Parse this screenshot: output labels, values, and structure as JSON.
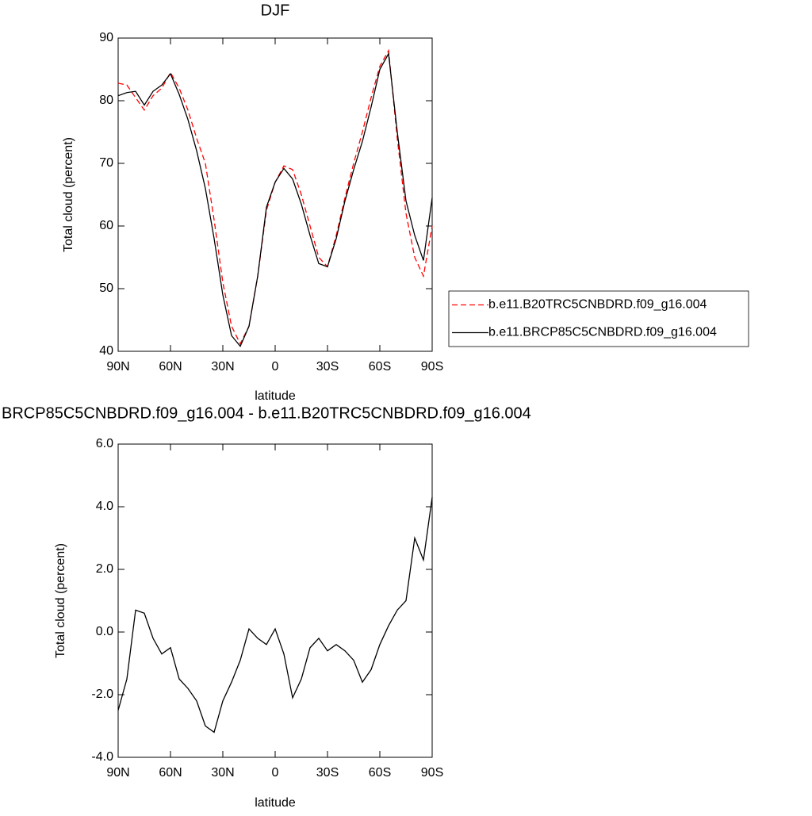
{
  "chart_data": [
    {
      "type": "line",
      "title": "DJF",
      "x_label": "latitude",
      "y_label": "Total cloud (percent)",
      "x": [
        90,
        85,
        80,
        75,
        70,
        65,
        60,
        55,
        50,
        45,
        40,
        35,
        30,
        25,
        20,
        15,
        10,
        5,
        0,
        -5,
        -10,
        -15,
        -20,
        -25,
        -30,
        -35,
        -40,
        -45,
        -50,
        -55,
        -60,
        -65,
        -70,
        -75,
        -80,
        -85,
        -90
      ],
      "xlim": [
        90,
        -90
      ],
      "xticks": [
        {
          "value": 90,
          "label": "90N"
        },
        {
          "value": 60,
          "label": "60N"
        },
        {
          "value": 30,
          "label": "30N"
        },
        0,
        {
          "value": -30,
          "label": "30S"
        },
        {
          "value": -60,
          "label": "60S"
        },
        {
          "value": -90,
          "label": "90S"
        }
      ],
      "ylim": [
        40,
        90
      ],
      "yticks": [
        40,
        50,
        60,
        70,
        80,
        90
      ],
      "legend": "right",
      "series": [
        {
          "name": "b.e11.B20TRC5CNBDRD.f09_g16.004",
          "color": "#ff0000",
          "style": "dashed",
          "values": [
            82.8,
            82.5,
            80.5,
            78.5,
            80.8,
            82,
            84.5,
            82,
            78.5,
            74,
            70,
            61,
            51,
            44,
            41.2,
            44,
            52,
            62.5,
            67,
            69.6,
            69,
            65,
            60,
            55,
            53.5,
            58.5,
            64.5,
            70,
            75,
            80.5,
            85.5,
            88,
            74,
            62,
            55,
            52,
            60
          ]
        },
        {
          "name": "b.e11.BRCP85C5CNBDRD.f09_g16.004",
          "color": "#000000",
          "style": "solid",
          "values": [
            80.8,
            81.3,
            81.5,
            79.3,
            81.5,
            82.5,
            84.3,
            81,
            77,
            72,
            66,
            58,
            49,
            42.5,
            40.8,
            44,
            52,
            63,
            67,
            69.2,
            67.5,
            63.5,
            58.5,
            54,
            53.5,
            58,
            64,
            69,
            73.5,
            79,
            85,
            87.5,
            75,
            64,
            58.5,
            54.5,
            64.5
          ]
        }
      ]
    },
    {
      "type": "line",
      "title": "BRCP85C5CNBDRD.f09_g16.004 - b.e11.B20TRC5CNBDRD.f09_g16.004",
      "x_label": "latitude",
      "y_label": "Total cloud (percent)",
      "x": [
        90,
        85,
        80,
        75,
        70,
        65,
        60,
        55,
        50,
        45,
        40,
        35,
        30,
        25,
        20,
        15,
        10,
        5,
        0,
        -5,
        -10,
        -15,
        -20,
        -25,
        -30,
        -35,
        -40,
        -45,
        -50,
        -55,
        -60,
        -65,
        -70,
        -75,
        -80,
        -85,
        -90
      ],
      "xlim": [
        90,
        -90
      ],
      "xticks": [
        {
          "value": 90,
          "label": "90N"
        },
        {
          "value": 60,
          "label": "60N"
        },
        {
          "value": 30,
          "label": "30N"
        },
        0,
        {
          "value": -30,
          "label": "30S"
        },
        {
          "value": -60,
          "label": "60S"
        },
        {
          "value": -90,
          "label": "90S"
        }
      ],
      "ylim": [
        -4,
        6
      ],
      "yticks": [
        {
          "value": -4,
          "label": "-4.0"
        },
        {
          "value": -2,
          "label": "-2.0"
        },
        {
          "value": 0,
          "label": "0.0"
        },
        {
          "value": 2,
          "label": "2.0"
        },
        {
          "value": 4,
          "label": "4.0"
        },
        {
          "value": 6,
          "label": "6.0"
        }
      ],
      "series": [
        {
          "color": "#000000",
          "style": "solid",
          "values": [
            -2.5,
            -1.5,
            0.7,
            0.6,
            -0.2,
            -0.7,
            -0.5,
            -1.5,
            -1.8,
            -2.2,
            -3.0,
            -3.2,
            -2.2,
            -1.6,
            -0.9,
            0.1,
            -0.2,
            -0.4,
            0.1,
            -0.7,
            -2.1,
            -1.5,
            -0.5,
            -0.2,
            -0.6,
            -0.4,
            -0.6,
            -0.9,
            -1.6,
            -1.2,
            -0.4,
            0.2,
            0.7,
            1.0,
            3.0,
            2.3,
            4.3
          ]
        }
      ]
    }
  ]
}
